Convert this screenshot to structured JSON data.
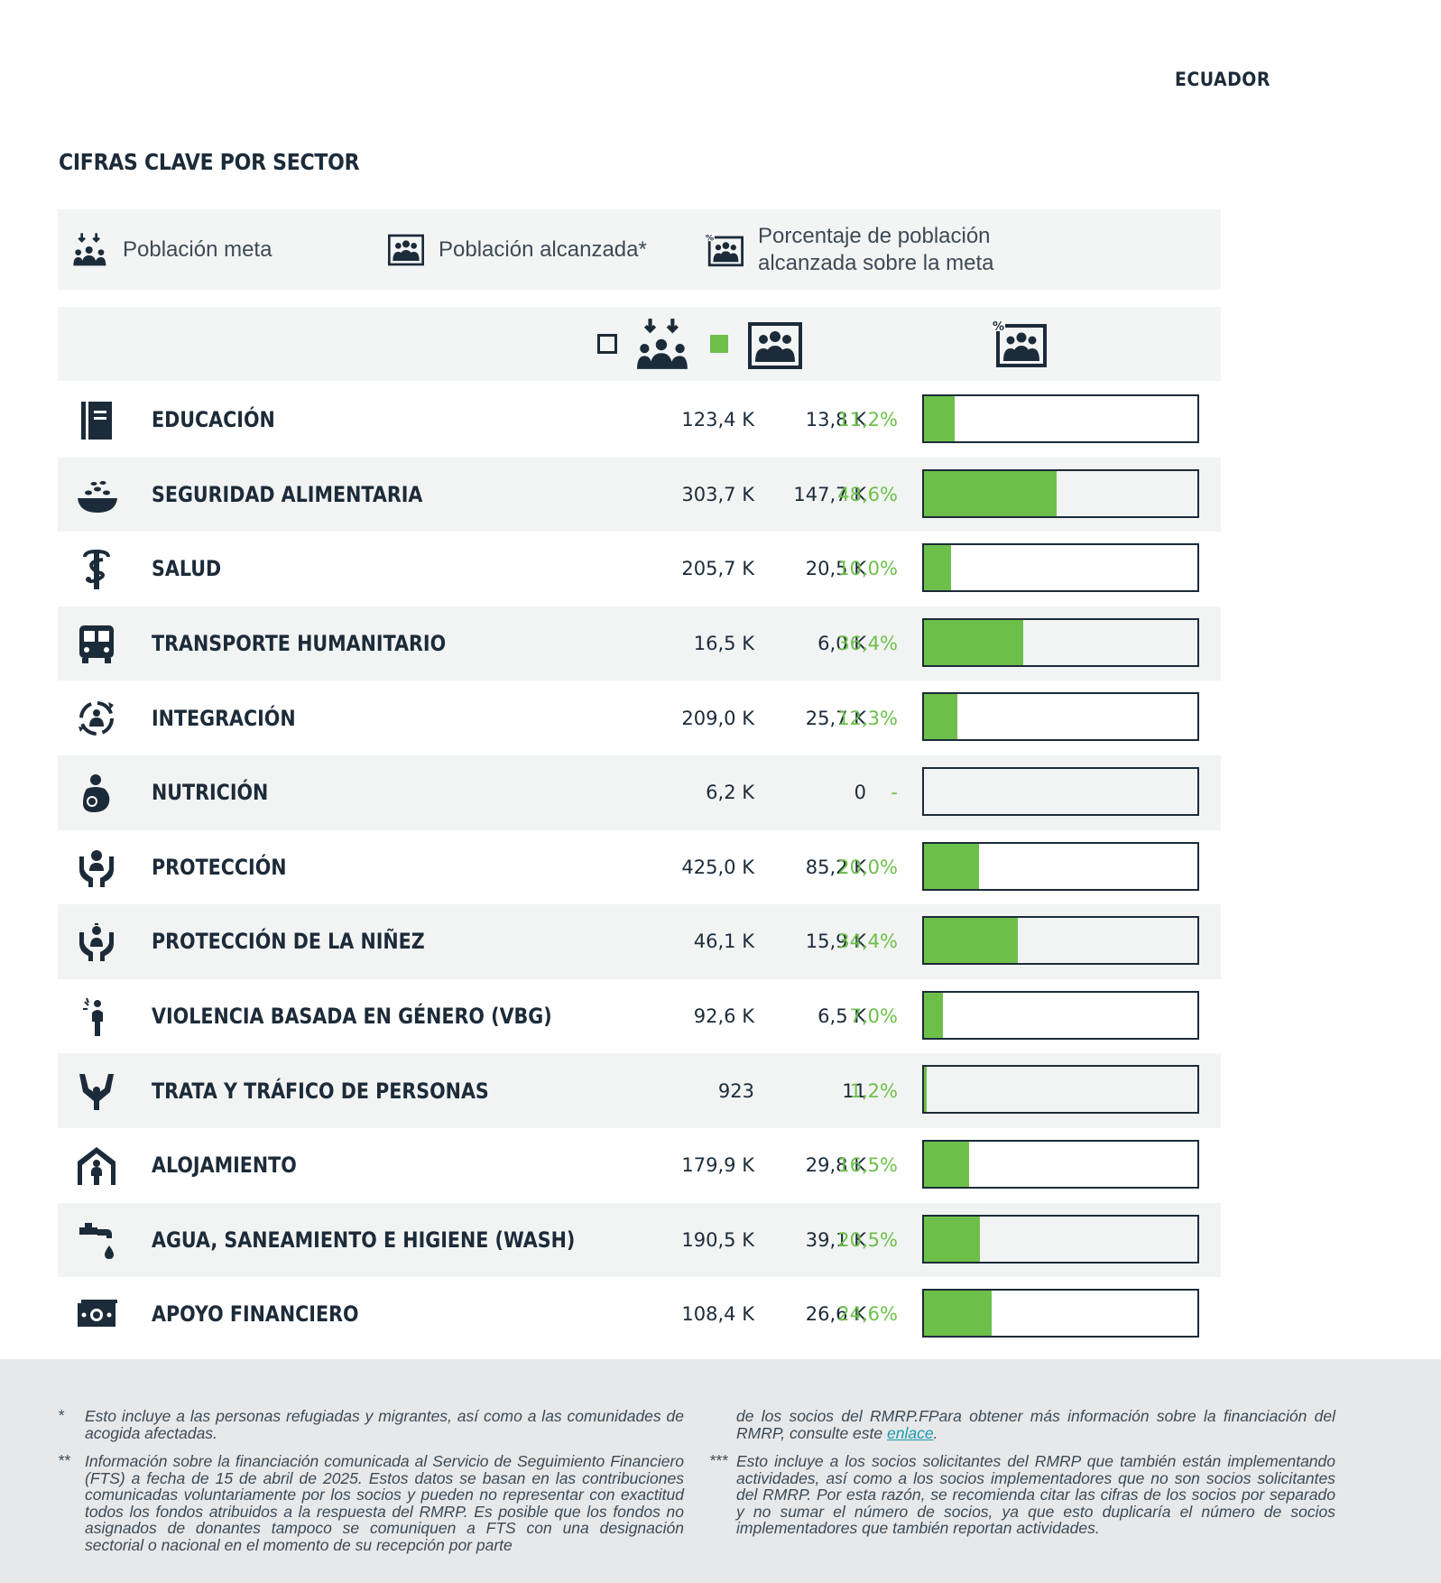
{
  "header": {
    "country": "ECUADOR",
    "title": "CIFRAS CLAVE POR SECTOR"
  },
  "legend": {
    "target_label": "Población meta",
    "reached_label": "Población alcanzada*",
    "pct_label_line1": "Porcentaje de población",
    "pct_label_line2": "alcanzada sobre la meta"
  },
  "colors": {
    "accent_green": "#6cc04a",
    "navy": "#1c2b39",
    "row_shade": "#f2f3f3",
    "footer_bg": "#e7e8e9",
    "link": "#1a9bb0"
  },
  "sectors": [
    {
      "icon": "education-icon",
      "name": "EDUCACIÓN",
      "target": "123,4 K",
      "reached": "13,8 K",
      "pct": "11,2%",
      "fraction": 0.112
    },
    {
      "icon": "food-security-icon",
      "name": "SEGURIDAD ALIMENTARIA",
      "target": "303,7 K",
      "reached": "147,7 K",
      "pct": "48,6%",
      "fraction": 0.486
    },
    {
      "icon": "health-icon",
      "name": "SALUD",
      "target": "205,7 K",
      "reached": "20,5 K",
      "pct": "10,0%",
      "fraction": 0.1
    },
    {
      "icon": "bus-icon",
      "name": "TRANSPORTE HUMANITARIO",
      "target": "16,5 K",
      "reached": "6,0 K",
      "pct": "36,4%",
      "fraction": 0.364
    },
    {
      "icon": "integration-icon",
      "name": "INTEGRACIÓN",
      "target": "209,0 K",
      "reached": "25,7 K",
      "pct": "12,3%",
      "fraction": 0.123
    },
    {
      "icon": "nutrition-icon",
      "name": "NUTRICIÓN",
      "target": "6,2 K",
      "reached": "0",
      "pct": "-",
      "fraction": 0
    },
    {
      "icon": "protection-icon",
      "name": "PROTECCIÓN",
      "target": "425,0 K",
      "reached": "85,2 K",
      "pct": "20,0%",
      "fraction": 0.2
    },
    {
      "icon": "child-protection-icon",
      "name": "PROTECCIÓN DE LA NIÑEZ",
      "target": "46,1 K",
      "reached": "15,9 K",
      "pct": "34,4%",
      "fraction": 0.344
    },
    {
      "icon": "gbv-icon",
      "name": "VIOLENCIA BASADA EN GÉNERO (VBG)",
      "target": "92,6 K",
      "reached": "6,5 K",
      "pct": "7,0%",
      "fraction": 0.07
    },
    {
      "icon": "trafficking-icon",
      "name": "TRATA Y TRÁFICO DE PERSONAS",
      "target": "923",
      "reached": "11",
      "pct": "1,2%",
      "fraction": 0.012
    },
    {
      "icon": "shelter-icon",
      "name": "ALOJAMIENTO",
      "target": "179,9 K",
      "reached": "29,8 K",
      "pct": "16,5%",
      "fraction": 0.165
    },
    {
      "icon": "water-tap-icon",
      "name": "AGUA, SANEAMIENTO E HIGIENE (WASH)",
      "target": "190,5 K",
      "reached": "39,1 K",
      "pct": "20,5%",
      "fraction": 0.205
    },
    {
      "icon": "cash-icon",
      "name": "APOYO FINANCIERO",
      "target": "108,4 K",
      "reached": "26,6 K",
      "pct": "24,6%",
      "fraction": 0.246
    }
  ],
  "footnotes": {
    "note1_mark": "*",
    "note1": "Esto incluye a las personas refugiadas y migrantes, así como a las comunidades de acogida afectadas.",
    "note2_mark": "**",
    "note2": "Información sobre la financiación comunicada al Servicio de Seguimiento Financiero (FTS) a fecha de 15 de abril de 2025. Estos datos se basan en las contribuciones comunicadas voluntariamente por los socios y pueden no representar con exactitud todos los fondos atribuidos a la respuesta del RMRP. Es posible que los fondos no asignados de donantes tampoco se comuniquen a FTS con una designación sectorial o nacional en el momento de su recepción por parte",
    "note2_cont": "de los socios del RMRP.FPara obtener más información sobre la financiación del RMRP, consulte este",
    "note2_link": "enlace",
    "note2_end": ".",
    "note3_mark": "***",
    "note3": "Esto incluye a los socios solicitantes del RMRP que también están implementando actividades, así como a los socios implementadores que no son socios solicitantes del RMRP. Por esta razón, se recomienda citar las cifras de los socios por separado y no sumar el número de socios, ya que esto duplicaría el número de socios implementadores que también reportan actividades."
  }
}
